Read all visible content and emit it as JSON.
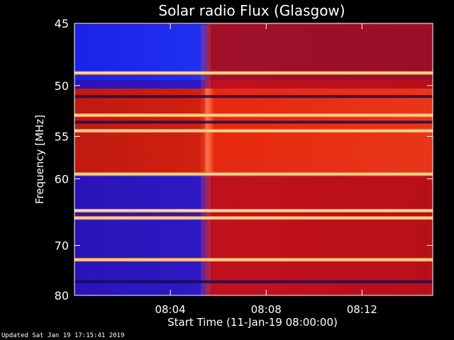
{
  "chart_data": {
    "type": "heatmap",
    "title": "Solar radio Flux (Glasgow)",
    "xlabel": "Start Time (11-Jan-19 08:00:00)",
    "ylabel": "Frequency [MHz]",
    "ylim": [
      45,
      80
    ],
    "y_ticks": [
      45,
      50,
      55,
      60,
      70,
      80
    ],
    "y_scale": "reciprocal (1/f)",
    "x_range": [
      "08:00:00",
      "08:14:57"
    ],
    "x_ticks": [
      "08:04",
      "08:08",
      "08:12"
    ],
    "colormap": [
      "#000000",
      "#3a0fd8",
      "#c01020",
      "#ff5a20",
      "#ffe080",
      "#ffffff"
    ],
    "background_transition_time": "08:05:30",
    "bright_lines_mhz": [
      48.9,
      52.8,
      54.4,
      59.4,
      64.4,
      65.5,
      72.6
    ],
    "dark_lines_mhz": [
      51.0,
      53.5,
      77.0
    ],
    "grid": false,
    "legend": "none"
  },
  "footer": {
    "updated": "Updated Sat Jan 19 17:15:41 2019"
  }
}
